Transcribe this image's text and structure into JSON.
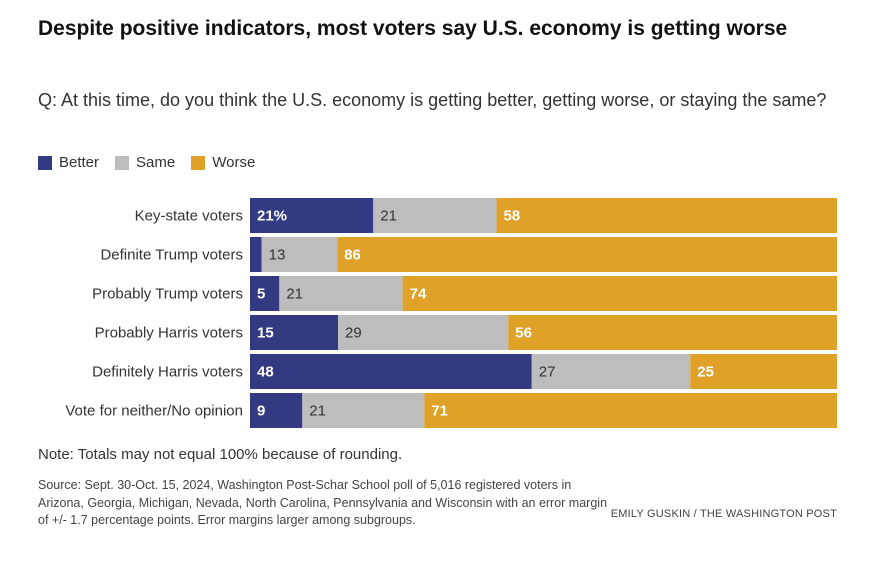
{
  "title": "Despite positive indicators, most voters say U.S. economy is getting worse",
  "subtitle": "Q: At this time, do you think the U.S. economy is getting better, getting worse, or staying the same?",
  "legend": [
    {
      "label": "Better",
      "color": "#343a82"
    },
    {
      "label": "Same",
      "color": "#bdbdbd"
    },
    {
      "label": "Worse",
      "color": "#dfa128"
    }
  ],
  "chart_data": {
    "type": "bar",
    "orientation": "horizontal",
    "stacked": true,
    "categories": [
      "Key-state voters",
      "Definite Trump voters",
      "Probably Trump voters",
      "Probably Harris voters",
      "Definitely Harris voters",
      "Vote for neither/No opinion"
    ],
    "series": [
      {
        "name": "Better",
        "color": "#343a82",
        "values": [
          21,
          2,
          5,
          15,
          48,
          9
        ],
        "labels": [
          "21%",
          "",
          "5",
          "15",
          "48",
          "9"
        ]
      },
      {
        "name": "Same",
        "color": "#bdbdbd",
        "values": [
          21,
          13,
          21,
          29,
          27,
          21
        ],
        "labels": [
          "21",
          "13",
          "21",
          "29",
          "27",
          "21"
        ]
      },
      {
        "name": "Worse",
        "color": "#dfa128",
        "values": [
          58,
          86,
          74,
          56,
          25,
          71
        ],
        "labels": [
          "58",
          "86",
          "74",
          "56",
          "25",
          "71"
        ]
      }
    ],
    "xlim": [
      0,
      100
    ]
  },
  "note": "Note: Totals may not equal 100% because of rounding.",
  "source": "Source: Sept. 30-Oct. 15, 2024, Washington Post-Schar School poll of 5,016 registered voters in Arizona, Georgia, Michigan, Nevada, North Carolina, Pennsylvania and Wisconsin with an error margin of +/- 1.7 percentage points. Error margins larger among subgroups.",
  "credit": "EMILY GUSKIN / THE WASHINGTON POST"
}
